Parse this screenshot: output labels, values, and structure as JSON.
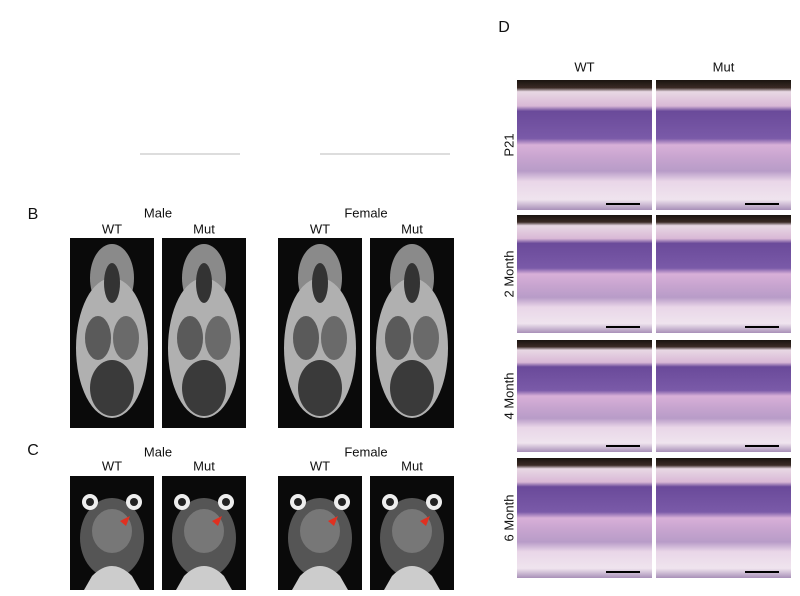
{
  "panels": {
    "B": {
      "label": "B",
      "groups": [
        {
          "title": "Male",
          "columns": [
            "WT",
            "Mut"
          ]
        },
        {
          "title": "Female",
          "columns": [
            "WT",
            "Mut"
          ]
        }
      ]
    },
    "C": {
      "label": "C",
      "groups": [
        {
          "title": "Male",
          "columns": [
            "WT",
            "Mut"
          ]
        },
        {
          "title": "Female",
          "columns": [
            "WT",
            "Mut"
          ]
        }
      ]
    },
    "D": {
      "label": "D",
      "columns": [
        "WT",
        "Mut"
      ],
      "rows": [
        "P21",
        "2 Month",
        "4 Month",
        "6 Month"
      ]
    }
  }
}
